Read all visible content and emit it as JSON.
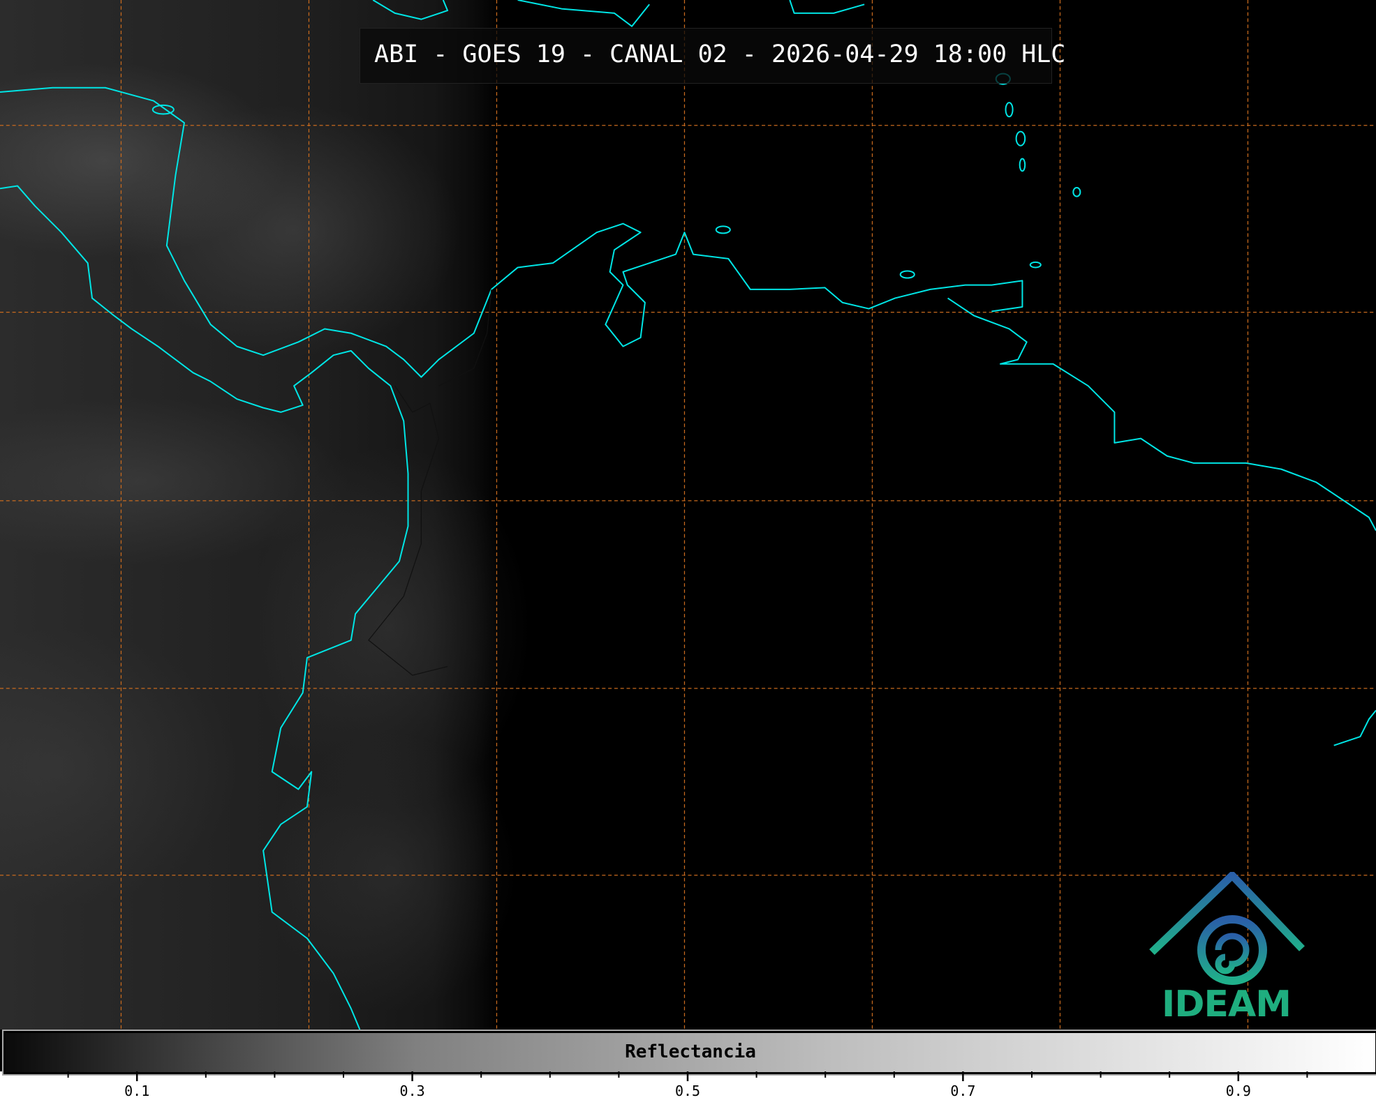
{
  "title": "ABI - GOES 19 - CANAL 02 - 2026-04-29 18:00 HLC",
  "colorbar": {
    "label": "Reflectancia",
    "range": [
      0,
      1.0
    ],
    "colormap": "greyscale black-to-white",
    "tick_labels": [
      "0.1",
      "0.3",
      "0.5",
      "0.7",
      "0.9"
    ],
    "tick_values": [
      0.1,
      0.3,
      0.5,
      0.7,
      0.9
    ],
    "minor_tick_step": 0.05
  },
  "map": {
    "coastline_color": "#00e5e5",
    "gridline_color": "#c86a1e",
    "gridline_style": "dashed"
  },
  "logo": {
    "text": "IDEAM",
    "color": "#1fae7f"
  }
}
